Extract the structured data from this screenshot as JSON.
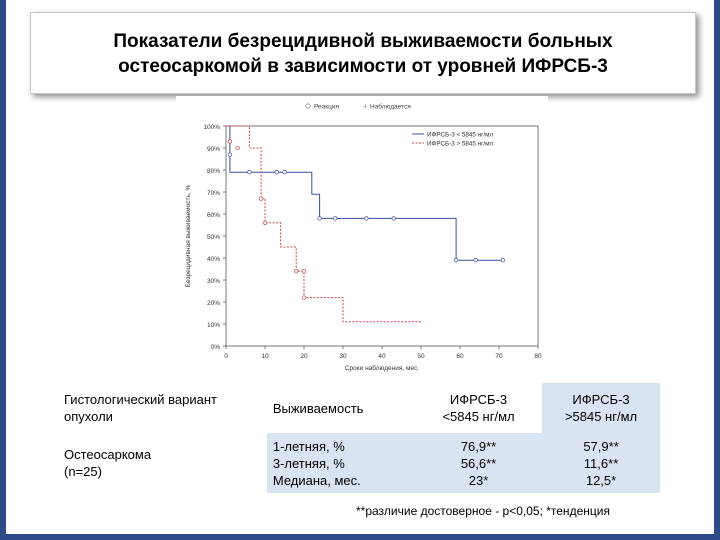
{
  "title": {
    "line1": "Показатели безрецидивной выживаемости больных",
    "line2": "остеосаркомой в зависимости от уровней ИФРСБ-3"
  },
  "chart_data": {
    "type": "line",
    "legend_top": {
      "event": "Реакция",
      "censored": "Наблюдается"
    },
    "ylabel": "Безрецидивная выживаемость, %",
    "xlabel": "Сроки наблюдения, мес.",
    "xlim": [
      0,
      80
    ],
    "ylim": [
      0,
      100
    ],
    "x_ticks": [
      "0",
      "10",
      "20",
      "30",
      "40",
      "50",
      "60",
      "70",
      "80"
    ],
    "y_ticks": [
      "0%",
      "10%",
      "20%",
      "30%",
      "40%",
      "50%",
      "60%",
      "70%",
      "80%",
      "90%",
      "100%"
    ],
    "series": [
      {
        "name": "ИФРСБ-3 < 5845 нг/мл",
        "color": "#3a4fa3",
        "style": "solid",
        "steps": [
          [
            0,
            100
          ],
          [
            1,
            100
          ],
          [
            1,
            79
          ],
          [
            22,
            79
          ],
          [
            22,
            69
          ],
          [
            24,
            69
          ],
          [
            24,
            58
          ],
          [
            59,
            58
          ],
          [
            59,
            39
          ],
          [
            71,
            39
          ]
        ],
        "censored": [
          [
            1,
            93
          ],
          [
            1,
            87
          ],
          [
            6,
            79
          ],
          [
            13,
            79
          ],
          [
            15,
            79
          ],
          [
            24,
            58
          ],
          [
            28,
            58
          ],
          [
            36,
            58
          ],
          [
            43,
            58
          ],
          [
            59,
            39
          ],
          [
            64,
            39
          ],
          [
            71,
            39
          ]
        ]
      },
      {
        "name": "ИФРСБ-3 > 5845 нг/мл",
        "color": "#cf4444",
        "style": "dotted",
        "steps": [
          [
            0,
            100
          ],
          [
            6,
            100
          ],
          [
            6,
            90
          ],
          [
            9,
            90
          ],
          [
            9,
            67
          ],
          [
            10,
            67
          ],
          [
            10,
            56
          ],
          [
            14,
            56
          ],
          [
            14,
            45
          ],
          [
            18,
            45
          ],
          [
            18,
            34
          ],
          [
            20,
            34
          ],
          [
            20,
            22
          ],
          [
            30,
            22
          ],
          [
            30,
            11
          ],
          [
            50,
            11
          ]
        ],
        "censored": [
          [
            1,
            93
          ],
          [
            3,
            90
          ],
          [
            9,
            67
          ],
          [
            10,
            56
          ],
          [
            18,
            34
          ],
          [
            20,
            34
          ],
          [
            20,
            22
          ]
        ]
      }
    ]
  },
  "table": {
    "header": {
      "col1": "Гистологический вариант опухоли",
      "col2": "Выживаемость",
      "col3_line1": "ИФРСБ-3",
      "col3_line2": "<5845 нг/мл",
      "col4_line1": "ИФРСБ-3",
      "col4_line2": ">5845 нг/мл"
    },
    "row": {
      "group_line1": "Остеосаркома",
      "group_line2": "(n=25)",
      "metrics": [
        "1-летняя, %",
        "3-летняя, %",
        "Медиана, мес."
      ],
      "low": [
        "76,9**",
        "56,6**",
        "23*"
      ],
      "high": [
        "57,9**",
        "11,6**",
        "12,5*"
      ]
    }
  },
  "footnote": "**различие достоверное - p<0,05; *тенденция"
}
